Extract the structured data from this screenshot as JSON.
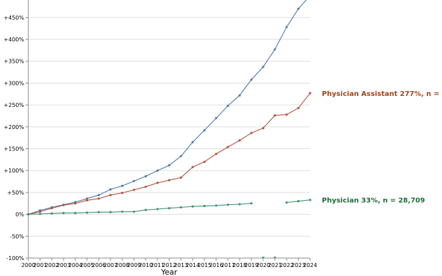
{
  "chart_data": {
    "type": "line",
    "xlabel": "Year",
    "ylabel": "",
    "x": [
      2000,
      2001,
      2002,
      2003,
      2004,
      2005,
      2006,
      2007,
      2008,
      2009,
      2010,
      2011,
      2012,
      2013,
      2014,
      2015,
      2016,
      2017,
      2018,
      2019,
      2020,
      2021,
      2022,
      2023,
      2024
    ],
    "xticks": [
      "2000",
      "2001",
      "2002",
      "2003",
      "2004",
      "2005",
      "2006",
      "2007",
      "2008",
      "2009",
      "2010",
      "2011",
      "2012",
      "2013",
      "2014",
      "2015",
      "2016",
      "2017",
      "2018",
      "2019",
      "2020",
      "2021",
      "2022",
      "2023",
      "2024"
    ],
    "ylim": [
      -100,
      490
    ],
    "yticks": [
      -100,
      -50,
      0,
      50,
      100,
      150,
      200,
      250,
      300,
      350,
      400,
      450
    ],
    "ytick_labels": [
      "-100%",
      "-50%",
      "0%",
      "+50%",
      "+100%",
      "+150%",
      "+200%",
      "+250%",
      "+300%",
      "+350%",
      "+400%",
      "+450%"
    ],
    "grid": true,
    "series": [
      {
        "key": "blue",
        "color": "#4c78a8",
        "values": [
          0,
          9,
          16,
          22,
          28,
          36,
          44,
          57,
          65,
          76,
          87,
          100,
          112,
          133,
          165,
          192,
          220,
          248,
          272,
          308,
          337,
          377,
          428,
          470,
          500
        ]
      },
      {
        "name": "Physician Assistant 277%, n = 9,650",
        "key": "pa",
        "color": "#b0513c",
        "values": [
          0,
          6,
          14,
          21,
          25,
          32,
          36,
          44,
          49,
          56,
          63,
          72,
          78,
          84,
          108,
          120,
          138,
          154,
          169,
          186,
          197,
          226,
          228,
          243,
          277
        ]
      },
      {
        "name": "Physician 33%, n = 28,709",
        "key": "physician",
        "color": "#3f8f6b",
        "values": [
          0,
          1,
          2,
          3,
          3,
          4,
          5,
          5,
          6,
          6,
          10,
          12,
          14,
          16,
          18,
          19,
          20,
          22,
          23,
          25,
          null,
          null,
          27,
          30,
          33
        ]
      }
    ],
    "series_labels": [
      {
        "key": "pa",
        "text": "Physician Assistant 277%, n = 9,650",
        "color": "#a0441c"
      },
      {
        "key": "physician",
        "text": "Physician 33%, n = 28,709",
        "color": "#1e6b3a"
      }
    ],
    "below_axis_markers": [
      {
        "x": 2020,
        "color": "#3f8f6b"
      },
      {
        "x": 2021,
        "color": "#3f8f6b"
      }
    ]
  }
}
